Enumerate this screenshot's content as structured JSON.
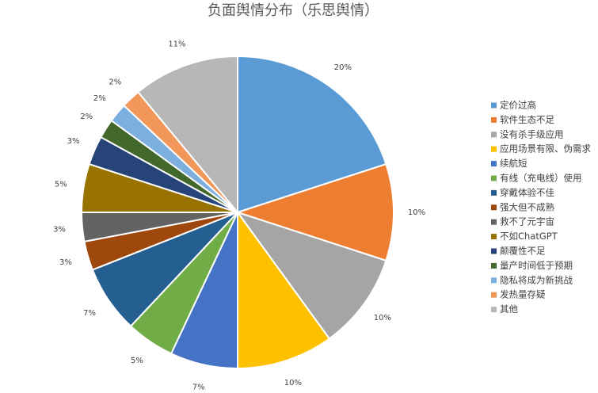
{
  "chart_data": {
    "type": "pie",
    "title": "负面舆情分布（乐思舆情）",
    "categories": [
      "定价过高",
      "软件生态不足",
      "没有杀手级应用",
      "应用场景有限、伪需求",
      "续航短",
      "有线（充电线）使用",
      "穿戴体验不佳",
      "强大但不成熟",
      "救不了元宇宙",
      "不如ChatGPT",
      "颠覆性不足",
      "量产时间低于预期",
      "隐私将成为新挑战",
      "发热量存疑",
      "其他"
    ],
    "values": [
      20,
      10,
      10,
      10,
      7,
      5,
      7,
      3,
      3,
      5,
      3,
      2,
      2,
      2,
      11
    ],
    "value_labels": [
      "20%",
      "10%",
      "10%",
      "10%",
      "7%",
      "5%",
      "7%",
      "3%",
      "3%",
      "5%",
      "3%",
      "2%",
      "2%",
      "2%",
      "11%"
    ],
    "colors": [
      "#5b9bd5",
      "#ed7d31",
      "#a5a5a5",
      "#ffc000",
      "#4472c4",
      "#70ad47",
      "#255e91",
      "#9e480e",
      "#636363",
      "#997300",
      "#264478",
      "#43682b",
      "#7cafdd",
      "#f1975a",
      "#b7b7b7"
    ],
    "legend": "right"
  }
}
